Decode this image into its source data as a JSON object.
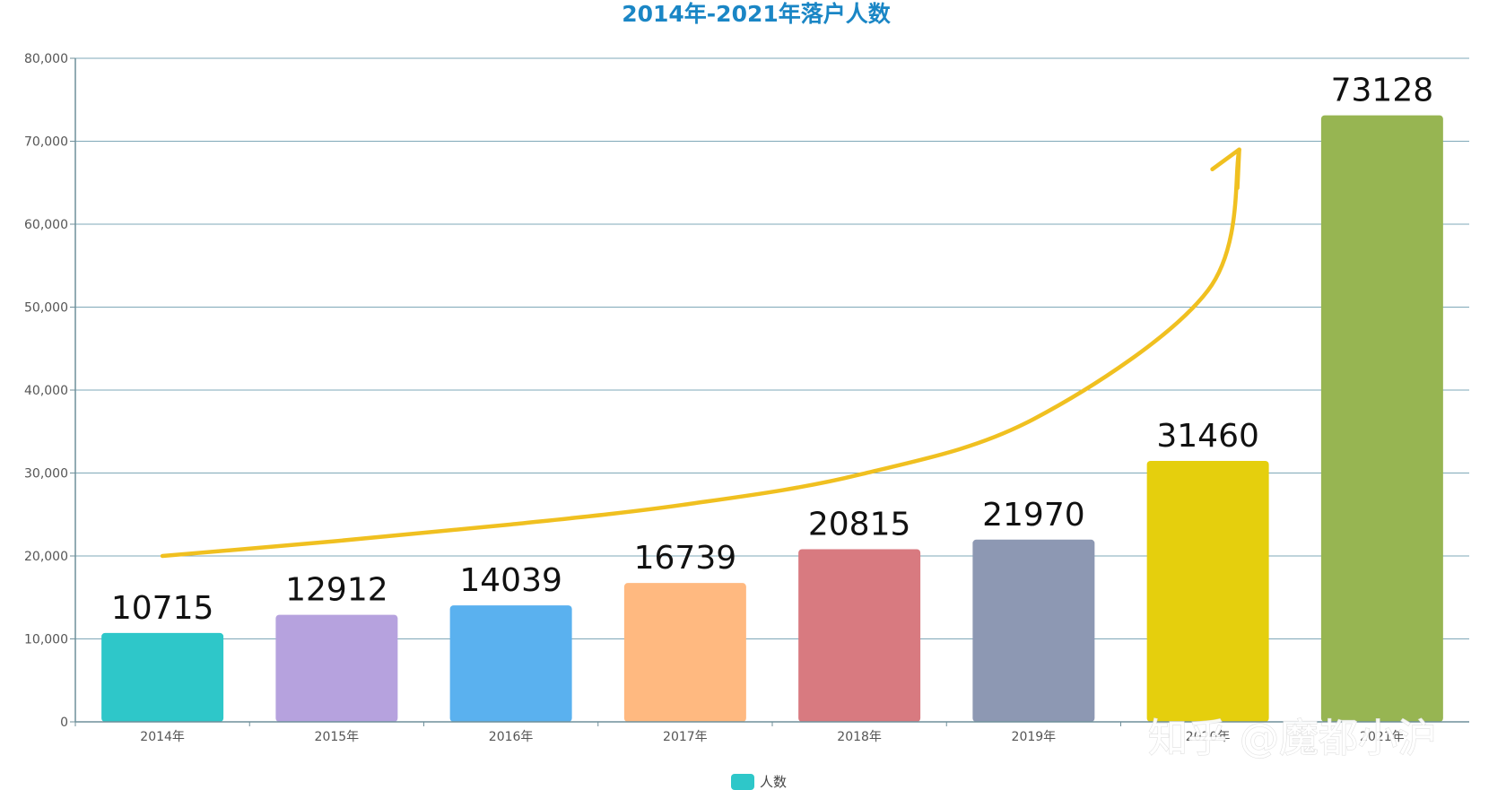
{
  "chart_data": {
    "type": "bar",
    "title": "2014年-2021年落户人数",
    "categories": [
      "2014年",
      "2015年",
      "2016年",
      "2017年",
      "2018年",
      "2019年",
      "2020年",
      "2021年"
    ],
    "series": [
      {
        "name": "人数",
        "values": [
          10715,
          12912,
          14039,
          16739,
          20815,
          21970,
          31460,
          73128
        ]
      }
    ],
    "data_labels": [
      "10715",
      "12912",
      "14039",
      "16739",
      "20815",
      "21970",
      "31460",
      "73128"
    ],
    "bar_colors": [
      "#2ec7c9",
      "#b6a2de",
      "#5ab1ef",
      "#ffb980",
      "#d87a80",
      "#8d98b3",
      "#e5cf0d",
      "#97b552"
    ],
    "ylim": [
      0,
      80000
    ],
    "yticks": [
      0,
      10000,
      20000,
      30000,
      40000,
      50000,
      60000,
      70000,
      80000
    ],
    "ytick_labels": [
      "0",
      "10,000",
      "20,000",
      "30,000",
      "40,000",
      "50,000",
      "60,000",
      "70,000",
      "80,000"
    ],
    "grid": true,
    "legend_position": "bottom-center",
    "legend_color": "#2ec7c9",
    "trend_arrow": {
      "color": "#f0c020",
      "y_values": [
        20000,
        21800,
        23800,
        26200,
        29800,
        36500,
        52000,
        69000
      ]
    }
  },
  "watermark": {
    "text": "知乎 @魔都小沪"
  },
  "colors": {
    "title": "#1a86c5",
    "grid": "#7fa8b8",
    "axis": "#6f8f9a"
  }
}
